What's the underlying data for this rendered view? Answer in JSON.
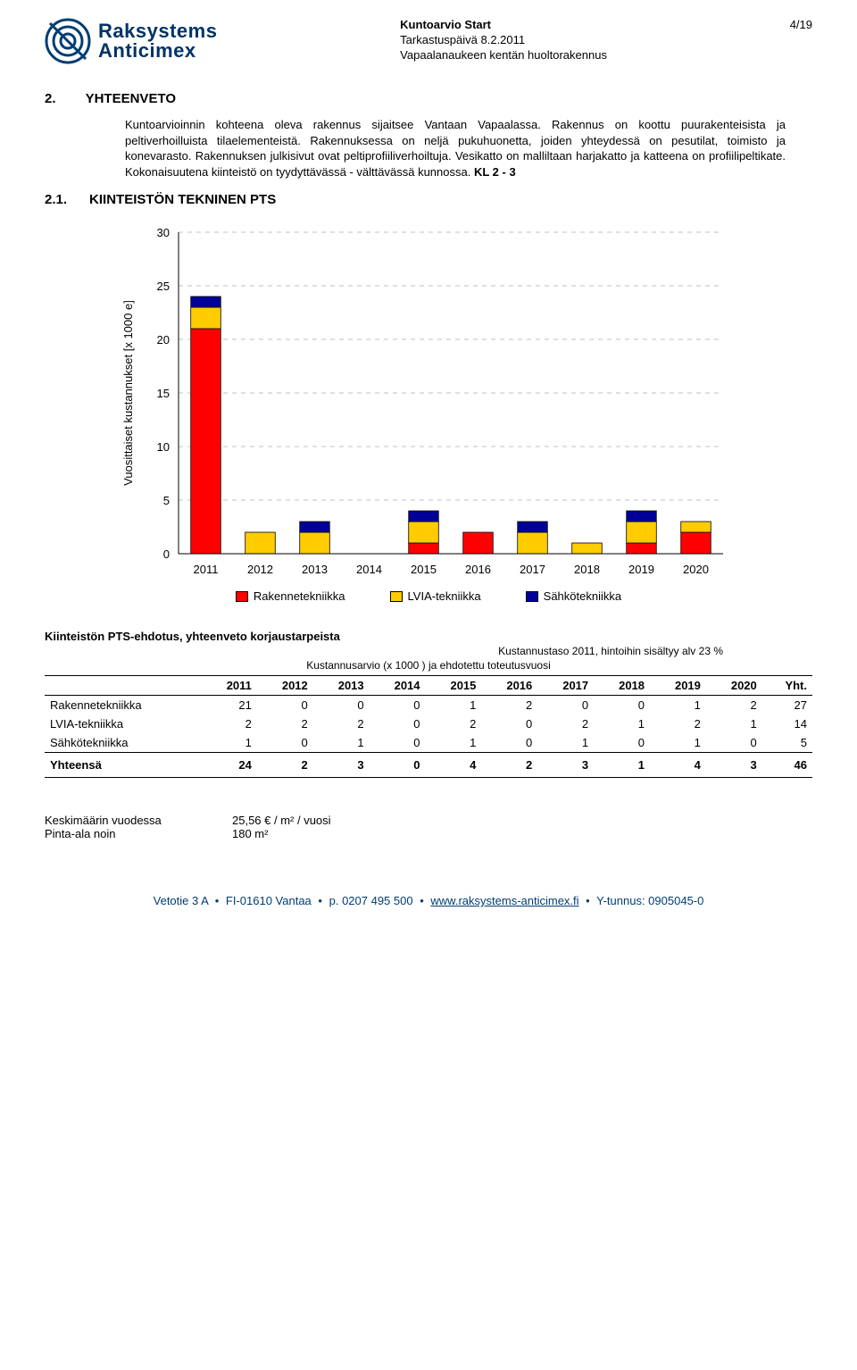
{
  "header": {
    "logo": {
      "line1": "Raksystems",
      "line2": "Anticimex",
      "stroke": "#003d73"
    },
    "title_bold": "Kuntoarvio Start",
    "line2": "Tarkastuspäivä 8.2.2011",
    "line3": "Vapaalanaukeen kentän huoltorakennus",
    "page": "4/19"
  },
  "s2": {
    "num": "2.",
    "title": "YHTEENVETO",
    "para": "Kuntoarvioinnin kohteena oleva rakennus sijaitsee Vantaan Vapaalassa. Rakennus on koottu puurakenteisista ja peltiverhoilluista tilaelementeistä. Rakennuksessa on neljä pukuhuonetta, joiden yhteydessä on pesutilat, toimisto ja konevarasto. Rakennuksen julkisivut ovat peltiprofiiliverhoiltuja. Vesikatto on malliltaan harjakatto ja katteena on profiilipeltikate. Kokonaisuutena kiinteistö on tyydyttävässä - välttävässä kunnossa.",
    "para_tail": " KL 2 - 3"
  },
  "s21": {
    "num": "2.1.",
    "title": "KIINTEISTÖN TEKNINEN PTS"
  },
  "chart": {
    "ylabel": "Vuosittaiset kustannukset [x 1000 e]",
    "ylim": [
      0,
      30
    ],
    "ytick_step": 5,
    "years": [
      "2011",
      "2012",
      "2013",
      "2014",
      "2015",
      "2016",
      "2017",
      "2018",
      "2019",
      "2020"
    ],
    "series": {
      "rakenne": {
        "label": "Rakennetekniikka",
        "color": "#ff0000",
        "values": [
          21,
          0,
          0,
          0,
          1,
          2,
          0,
          0,
          1,
          2
        ]
      },
      "lvia": {
        "label": "LVIA-tekniikka",
        "color": "#ffcc00",
        "values": [
          2,
          2,
          2,
          0,
          2,
          0,
          2,
          1,
          2,
          1
        ]
      },
      "sahko": {
        "label": "Sähkötekniikka",
        "color": "#000099",
        "values": [
          1,
          0,
          1,
          0,
          1,
          0,
          1,
          0,
          1,
          0
        ]
      }
    },
    "grid_color": "#c0c0c0",
    "bar_border": "#000000",
    "background": "#ffffff",
    "bar_width": 0.55
  },
  "table": {
    "title": "Kiinteistön PTS-ehdotus, yhteenveto korjaustarpeista",
    "subtitle": "Kustannustaso 2011, hintoihin sisältyy alv 23 %",
    "head2": "Kustannusarvio (x 1000 ) ja ehdotettu toteutusvuosi",
    "years": [
      "2011",
      "2012",
      "2013",
      "2014",
      "2015",
      "2016",
      "2017",
      "2018",
      "2019",
      "2020"
    ],
    "yht": "Yht.",
    "rows": [
      {
        "label": "Rakennetekniikka",
        "vals": [
          21,
          0,
          0,
          0,
          1,
          2,
          0,
          0,
          1,
          2
        ],
        "sum": 27
      },
      {
        "label": "LVIA-tekniikka",
        "vals": [
          2,
          2,
          2,
          0,
          2,
          0,
          2,
          1,
          2,
          1
        ],
        "sum": 14
      },
      {
        "label": "Sähkötekniikka",
        "vals": [
          1,
          0,
          1,
          0,
          1,
          0,
          1,
          0,
          1,
          0
        ],
        "sum": 5
      }
    ],
    "total": {
      "label": "Yhteensä",
      "vals": [
        24,
        2,
        3,
        0,
        4,
        2,
        3,
        1,
        4,
        3
      ],
      "sum": 46
    }
  },
  "footer_block": {
    "r1_label": "Keskimäärin vuodessa",
    "r1_val": "25,56 € / m² / vuosi",
    "r2_label": "Pinta-ala noin",
    "r2_val": "180 m²"
  },
  "page_footer": {
    "parts": [
      "Vetotie 3 A",
      "FI-01610 Vantaa",
      "p. 0207 495 500",
      "www.raksystems-anticimex.fi",
      "Y-tunnus: 0905045-0"
    ]
  }
}
